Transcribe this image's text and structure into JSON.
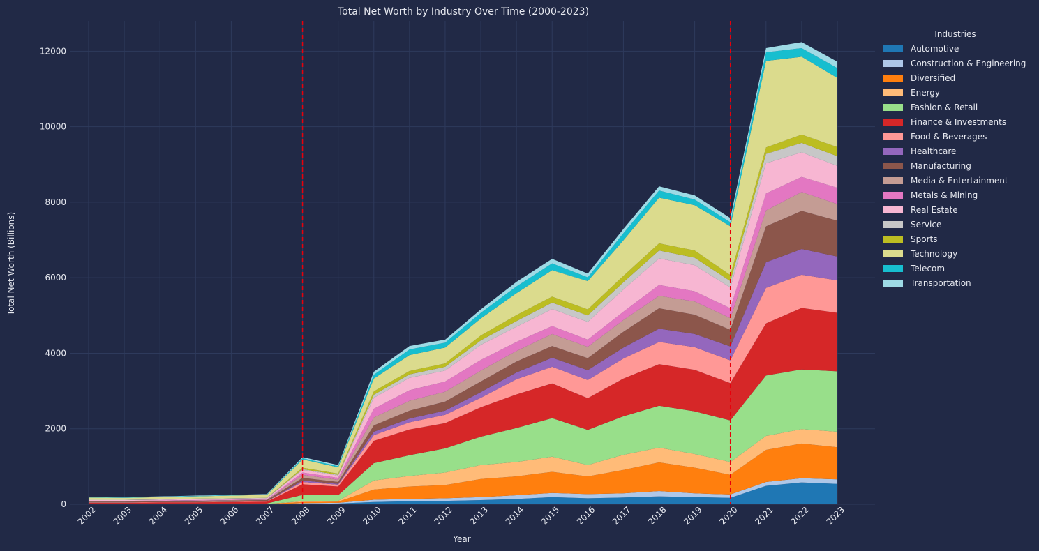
{
  "chart_data": {
    "type": "area",
    "stacked": true,
    "title": "Total Net Worth by Industry Over Time (2000-2023)",
    "xlabel": "Year",
    "ylabel": "Total Net Worth (Billions)",
    "ylim": [
      0,
      12800
    ],
    "yticks": [
      0,
      2000,
      4000,
      6000,
      8000,
      10000,
      12000
    ],
    "grid": true,
    "legend_title": "Industries",
    "legend_position": "right",
    "x": [
      "2002",
      "2003",
      "2004",
      "2005",
      "2006",
      "2007",
      "2008",
      "2009",
      "2010",
      "2011",
      "2012",
      "2013",
      "2014",
      "2015",
      "2016",
      "2017",
      "2018",
      "2019",
      "2020",
      "2021",
      "2022",
      "2023"
    ],
    "vlines": [
      {
        "x": "2008",
        "color": "#e8000b",
        "style": "dashed"
      },
      {
        "x": "2020",
        "color": "#e8000b",
        "style": "dashed"
      }
    ],
    "series": [
      {
        "name": "Automotive",
        "color": "#1f77b4",
        "values": [
          0,
          0,
          0,
          0,
          0,
          0,
          10,
          20,
          60,
          80,
          90,
          110,
          140,
          190,
          160,
          180,
          210,
          190,
          170,
          490,
          580,
          540
        ]
      },
      {
        "name": "Construction & Engineering",
        "color": "#aec7e8",
        "values": [
          0,
          0,
          0,
          0,
          0,
          0,
          20,
          20,
          60,
          60,
          70,
          80,
          100,
          110,
          110,
          110,
          140,
          100,
          90,
          100,
          110,
          120
        ]
      },
      {
        "name": "Diversified",
        "color": "#ff7f0e",
        "values": [
          10,
          10,
          10,
          10,
          10,
          10,
          30,
          30,
          270,
          330,
          350,
          480,
          500,
          560,
          470,
          620,
          760,
          680,
          520,
          850,
          920,
          850
        ]
      },
      {
        "name": "Energy",
        "color": "#ffbb78",
        "values": [
          0,
          0,
          0,
          0,
          0,
          0,
          20,
          20,
          240,
          280,
          330,
          370,
          380,
          400,
          300,
          400,
          390,
          360,
          340,
          370,
          380,
          410
        ]
      },
      {
        "name": "Fashion & Retail",
        "color": "#98df8a",
        "values": [
          10,
          10,
          10,
          10,
          10,
          10,
          170,
          150,
          460,
          550,
          640,
          750,
          900,
          1020,
          930,
          1020,
          1110,
          1130,
          1100,
          1600,
          1580,
          1600
        ]
      },
      {
        "name": "Finance & Investments",
        "color": "#d62728",
        "values": [
          20,
          20,
          30,
          30,
          40,
          50,
          280,
          230,
          590,
          680,
          670,
          780,
          890,
          920,
          840,
          1000,
          1100,
          1100,
          990,
          1380,
          1630,
          1550
        ]
      },
      {
        "name": "Food & Beverages",
        "color": "#ff9896",
        "values": [
          10,
          10,
          10,
          10,
          10,
          10,
          60,
          50,
          150,
          190,
          220,
          250,
          400,
          440,
          480,
          530,
          590,
          600,
          600,
          940,
          880,
          860
        ]
      },
      {
        "name": "Healthcare",
        "color": "#9467bd",
        "values": [
          0,
          0,
          0,
          0,
          0,
          0,
          40,
          20,
          90,
          100,
          110,
          150,
          180,
          240,
          260,
          290,
          350,
          350,
          370,
          680,
          680,
          630
        ]
      },
      {
        "name": "Manufacturing",
        "color": "#8c564b",
        "values": [
          20,
          20,
          20,
          30,
          30,
          30,
          70,
          50,
          170,
          210,
          240,
          280,
          290,
          310,
          320,
          420,
          540,
          510,
          440,
          950,
          1010,
          950
        ]
      },
      {
        "name": "Media & Entertainment",
        "color": "#c49c94",
        "values": [
          10,
          10,
          10,
          10,
          10,
          10,
          80,
          60,
          210,
          260,
          260,
          290,
          280,
          320,
          300,
          310,
          330,
          350,
          310,
          420,
          500,
          440
        ]
      },
      {
        "name": "Metals & Mining",
        "color": "#e377c2",
        "values": [
          10,
          10,
          10,
          10,
          10,
          10,
          60,
          50,
          230,
          280,
          270,
          280,
          240,
          210,
          190,
          220,
          290,
          270,
          260,
          450,
          400,
          430
        ]
      },
      {
        "name": "Real Estate",
        "color": "#f7b6d2",
        "values": [
          20,
          20,
          20,
          30,
          30,
          30,
          70,
          60,
          290,
          330,
          290,
          400,
          400,
          450,
          470,
          590,
          700,
          690,
          550,
          800,
          650,
          580
        ]
      },
      {
        "name": "Service",
        "color": "#c7c7c7",
        "values": [
          10,
          10,
          10,
          10,
          10,
          10,
          20,
          20,
          80,
          90,
          100,
          120,
          150,
          170,
          170,
          190,
          210,
          200,
          170,
          250,
          250,
          260
        ]
      },
      {
        "name": "Sports",
        "color": "#bcbd22",
        "values": [
          0,
          0,
          0,
          0,
          0,
          0,
          40,
          30,
          90,
          90,
          90,
          130,
          160,
          160,
          160,
          170,
          190,
          190,
          160,
          170,
          220,
          240
        ]
      },
      {
        "name": "Technology",
        "color": "#dbdb8d",
        "values": [
          60,
          50,
          60,
          60,
          70,
          80,
          220,
          170,
          340,
          420,
          420,
          450,
          580,
          700,
          750,
          940,
          1210,
          1200,
          1290,
          2290,
          2060,
          1830
        ]
      },
      {
        "name": "Telecom",
        "color": "#17becf",
        "values": [
          10,
          10,
          10,
          10,
          10,
          10,
          30,
          30,
          100,
          150,
          130,
          150,
          180,
          180,
          100,
          190,
          190,
          150,
          110,
          230,
          230,
          260
        ]
      },
      {
        "name": "Transportation",
        "color": "#9edae5",
        "values": [
          10,
          10,
          10,
          10,
          10,
          10,
          30,
          30,
          80,
          90,
          80,
          90,
          120,
          120,
          100,
          110,
          110,
          110,
          110,
          110,
          160,
          170
        ]
      }
    ]
  }
}
